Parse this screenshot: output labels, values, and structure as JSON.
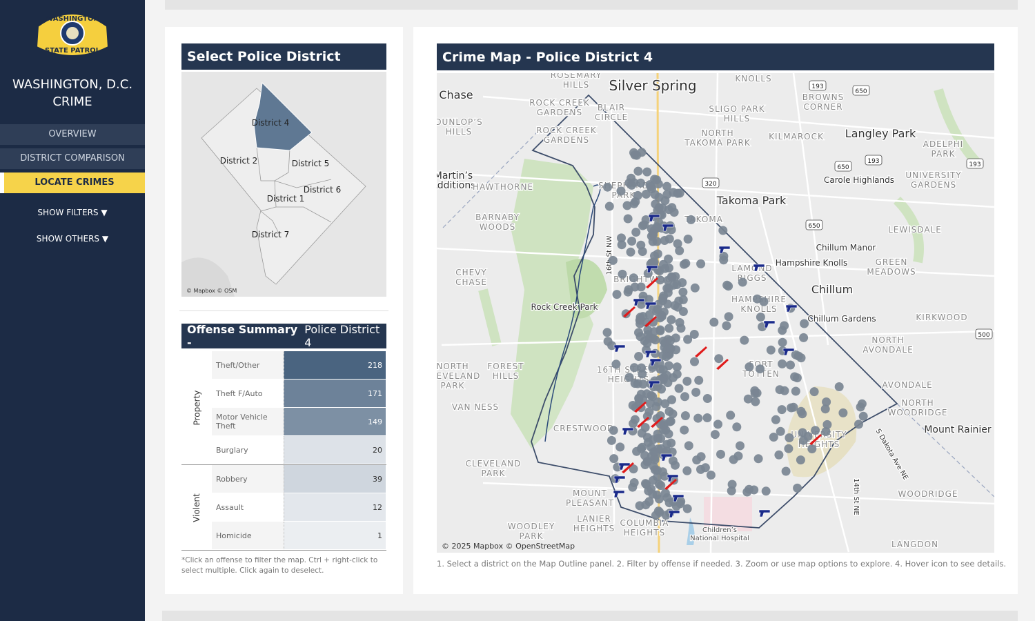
{
  "sidebar": {
    "logo_text": [
      "WASHINGTON",
      "STATE PATROL"
    ],
    "title": "WASHINGTON, D.C. CRIME",
    "nav": [
      "OVERVIEW",
      "DISTRICT COMPARISON",
      "LOCATE CRIMES"
    ],
    "active": 2,
    "toggles": [
      "SHOW FILTERS ▼",
      "SHOW OTHERS ▼"
    ]
  },
  "district_panel": {
    "title": "Select Police District",
    "districts": [
      "District 4",
      "District 2",
      "District 5",
      "District 6",
      "District 1",
      "District 7"
    ],
    "attribution": "© Mapbox © OSM"
  },
  "offense_summary": {
    "title": "Offense Summary -",
    "subtitle": "Police District 4",
    "groups": [
      {
        "name": "Property",
        "rows": [
          {
            "offense": "Theft/Other",
            "count": 218
          },
          {
            "offense": "Theft F/Auto",
            "count": 171
          },
          {
            "offense": "Motor Vehicle Theft",
            "count": 149
          },
          {
            "offense": "Burglary",
            "count": 20
          }
        ]
      },
      {
        "name": "Violent",
        "rows": [
          {
            "offense": "Robbery",
            "count": 39
          },
          {
            "offense": "Assault",
            "count": 12
          },
          {
            "offense": "Homicide",
            "count": 1
          }
        ]
      }
    ],
    "note": "*Click an offense to filter the map. Ctrl + right-click to select multiple. Click again to deselect."
  },
  "crime_map": {
    "title": "Crime Map - Police District 4",
    "places": [
      [
        "Silver Spring"
      ],
      [
        "ROSEMARY",
        "HILLS"
      ],
      [
        "ROCK CREEK",
        "GARDENS"
      ],
      [
        "BLAIR",
        "CIRCLE"
      ],
      [
        "DUNLOP’S",
        "HILLS"
      ],
      [
        "ROCK CREEK",
        "GARDENS"
      ],
      [
        "SLIGO PARK",
        "HILLS"
      ],
      [
        "NORTH",
        "TAKOMA PARK"
      ],
      [
        "KILMAROCK"
      ],
      [
        "KNOLLS"
      ],
      [
        "BROWNS",
        "CORNER"
      ],
      [
        "Langley Park"
      ],
      [
        "ADELPHI",
        "PARK"
      ],
      [
        "Chase"
      ],
      [
        "Martin’s",
        "Additions"
      ],
      [
        "HAWTHORNE"
      ],
      [
        "SHEPHERD",
        "PARK"
      ],
      [
        "Takoma Park"
      ],
      [
        "Carole Highlands"
      ],
      [
        "UNIVERSITY",
        "GARDENS"
      ],
      [
        "LEWISDALE"
      ],
      [
        "BARNABY",
        "WOODS"
      ],
      [
        "TAKOMA"
      ],
      [
        "Chillum Manor"
      ],
      [
        "Hampshire Knolls"
      ],
      [
        "GREEN",
        "MEADOWS"
      ],
      [
        "CHEVY",
        "CHASE"
      ],
      [
        "BRIGHTWOOD"
      ],
      [
        "LAMOND",
        "RIGGS"
      ],
      [
        "Chillum"
      ],
      [
        "Rock Creek Park"
      ],
      [
        "HAMPSHIRE",
        "KNOLLS"
      ],
      [
        "Chillum Gardens"
      ],
      [
        "KIRKWOOD"
      ],
      [
        "NORTH",
        "AVONDALE"
      ],
      [
        "FORT",
        "TOTTEN"
      ],
      [
        "FOREST",
        "HILLS"
      ],
      [
        "NORTH",
        "CLEVELAND",
        "PARK"
      ],
      [
        "16TH STREET",
        "HEIGHTS"
      ],
      [
        "AVONDALE"
      ],
      [
        "NORTH",
        "WOODRIDGE"
      ],
      [
        "VAN NESS"
      ],
      [
        "CRESTWOOD"
      ],
      [
        "Mount Rainier"
      ],
      [
        "UNIVERSITY",
        "HEIGHTS"
      ],
      [
        "CLEVELAND",
        "PARK"
      ],
      [
        "MOUNT",
        "PLEASANT"
      ],
      [
        "WOODRIDGE"
      ],
      [
        "LANIER",
        "HEIGHTS"
      ],
      [
        "COLUMBIA",
        "HEIGHTS"
      ],
      [
        "WOODLEY",
        "PARK"
      ],
      [
        "Children’s",
        "National Hospital"
      ],
      [
        "LANGDON"
      ],
      [
        "16th St NW"
      ],
      [
        "S Dakota Ave NE"
      ],
      [
        "14th St NE"
      ]
    ],
    "shields": [
      "193",
      "650",
      "650",
      "193",
      "320",
      "650",
      "193",
      "500"
    ],
    "attribution": "© 2025 Mapbox © OpenStreetMap",
    "instructions": "1. Select a district on the Map Outline panel.  2. Filter by offense if needed.  3. Zoom or use map options to explore.  4. Hover icon to see details."
  }
}
